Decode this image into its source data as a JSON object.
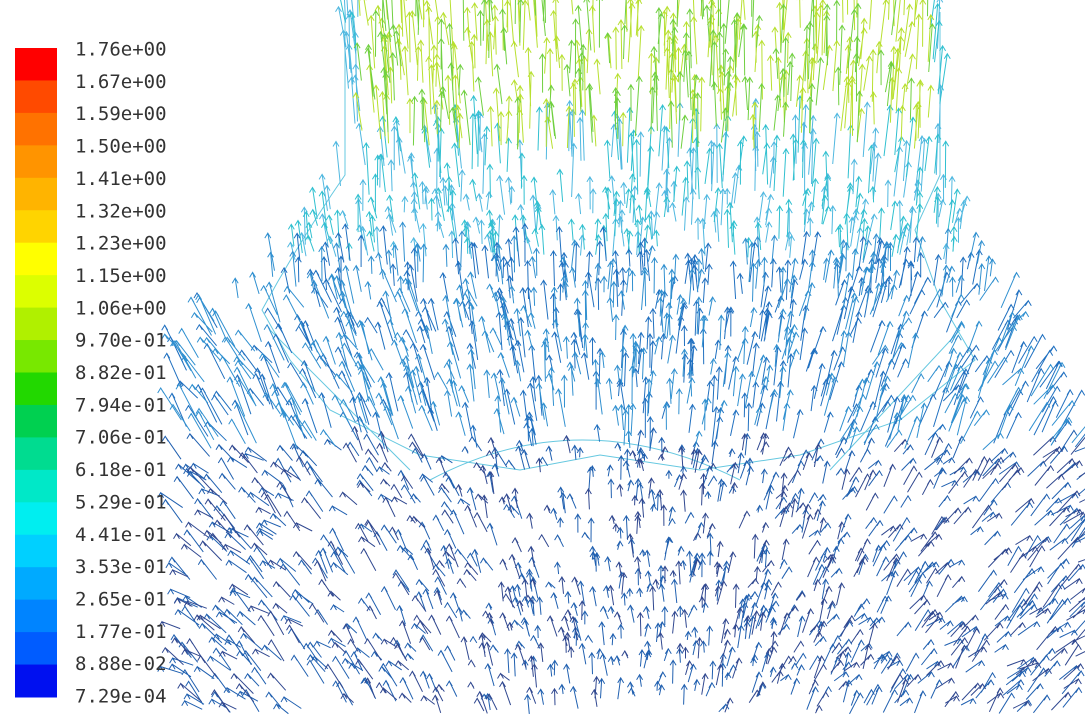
{
  "colorbar": {
    "labels": [
      "1.76e+00",
      "1.67e+00",
      "1.59e+00",
      "1.50e+00",
      "1.41e+00",
      "1.32e+00",
      "1.23e+00",
      "1.15e+00",
      "1.06e+00",
      "9.70e-01",
      "8.82e-01",
      "7.94e-01",
      "7.06e-01",
      "6.18e-01",
      "5.29e-01",
      "4.41e-01",
      "3.53e-01",
      "2.65e-01",
      "1.77e-01",
      "8.88e-02",
      "7.29e-04"
    ],
    "colors": [
      "#ff0000",
      "#ff4a00",
      "#ff7200",
      "#ff9400",
      "#ffb400",
      "#ffd400",
      "#ffff00",
      "#dcff00",
      "#b0f000",
      "#78e800",
      "#22d800",
      "#00d050",
      "#00dc90",
      "#00e8c8",
      "#00eef0",
      "#00d0ff",
      "#00aaff",
      "#0084ff",
      "#005cff",
      "#0010f0"
    ]
  }
}
